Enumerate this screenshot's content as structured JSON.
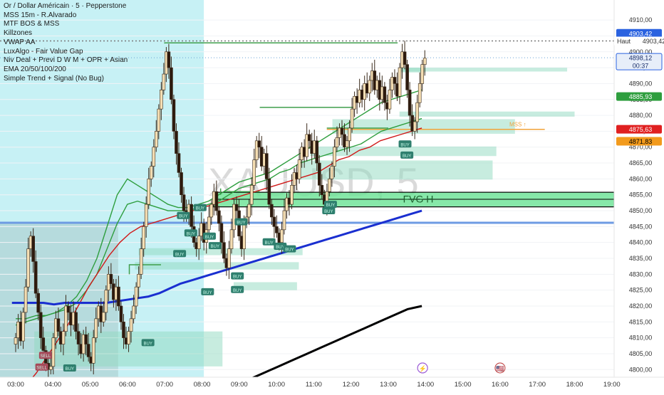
{
  "legend": {
    "symbol_line": "Or / Dollar Américain · 5 · Pepperstone",
    "indicators": [
      "MSS 15m - R.Alvarado",
      "MTF BOS & MSS",
      "Killzones",
      "VWAP AA",
      "LuxAlgo - Fair Value Gap",
      "Niv Deal + Previ D W M + OPR + Asian",
      "EMA 20/50/100/200",
      "Simple Trend + Signal (No Bug)"
    ]
  },
  "watermark": "XAUUSD, 5",
  "colors": {
    "bull_candle": "#f5deb3",
    "bear_candle": "#2d1a0e",
    "wick": "#3a2a1a",
    "session_fill": "#b4ecf2",
    "asian_fill": "#a8c8c8",
    "ema_green": "#2e9e3e",
    "ema_red": "#d01818",
    "ema_blue": "#1a2fd0",
    "ema_black": "#000000",
    "fvg_fill": "#8fd9bf",
    "level_blue": "#6e9be3",
    "signal_badge": "#2f7f6e"
  },
  "chart_data": {
    "type": "candlestick",
    "title": "Or / Dollar Américain · 5 · Pepperstone",
    "symbol": "XAUUSD",
    "timeframe": "5",
    "x_tick_labels": [
      "03:00",
      "04:00",
      "05:00",
      "06:00",
      "07:00",
      "08:00",
      "09:00",
      "10:00",
      "11:00",
      "12:00",
      "13:00",
      "14:00",
      "15:00",
      "16:00",
      "17:00",
      "18:00",
      "19:00"
    ],
    "y_tick_labels": [
      "4910,00",
      "4905,00",
      "4900,00",
      "4895,00",
      "4890,00",
      "4885,00",
      "4880,00",
      "4875,00",
      "4870,00",
      "4865,00",
      "4860,00",
      "4855,00",
      "4850,00",
      "4845,00",
      "4840,00",
      "4835,00",
      "4830,00",
      "4825,00",
      "4820,00",
      "4815,00",
      "4810,00",
      "4805,00",
      "4800,00"
    ],
    "ylim": [
      4798,
      4916
    ],
    "xlim": [
      "02:58",
      "19:25"
    ],
    "closes": [
      4810,
      4815,
      4809,
      4818,
      4826,
      4838,
      4842,
      4834,
      4824,
      4818,
      4810,
      4806,
      4802,
      4800,
      4801,
      4810,
      4816,
      4812,
      4808,
      4812,
      4820,
      4818,
      4814,
      4818,
      4812,
      4808,
      4805,
      4811,
      4808,
      4804,
      4802,
      4810,
      4816,
      4820,
      4815,
      4818,
      4825,
      4830,
      4827,
      4822,
      4826,
      4820,
      4815,
      4810,
      4808,
      4812,
      4816,
      4820,
      4826,
      4830,
      4838,
      4845,
      4852,
      4860,
      4864,
      4870,
      4875,
      4882,
      4888,
      4893,
      4900,
      4895,
      4885,
      4875,
      4868,
      4862,
      4855,
      4850,
      4848,
      4852,
      4845,
      4840,
      4838,
      4842,
      4846,
      4840,
      4844,
      4848,
      4852,
      4856,
      4850,
      4846,
      4840,
      4835,
      4832,
      4838,
      4844,
      4852,
      4850,
      4842,
      4838,
      4846,
      4848,
      4852,
      4858,
      4866,
      4872,
      4870,
      4864,
      4868,
      4860,
      4852,
      4848,
      4845,
      4843,
      4840,
      4844,
      4850,
      4854,
      4852,
      4858,
      4862,
      4860,
      4866,
      4870,
      4867,
      4874,
      4872,
      4868,
      4872,
      4865,
      4858,
      4855,
      4852,
      4856,
      4860,
      4864,
      4870,
      4873,
      4876,
      4874,
      4870,
      4872,
      4876,
      4882,
      4886,
      4884,
      4888,
      4885,
      4890,
      4887,
      4891,
      4894,
      4888,
      4891,
      4885,
      4889,
      4884,
      4882,
      4888,
      4892,
      4890,
      4886,
      4895,
      4900,
      4896,
      4888,
      4880,
      4875,
      4878,
      4884,
      4890,
      4896,
      4898
    ],
    "last_price": "4898,12",
    "countdown": "00:37",
    "price_tags": [
      {
        "value": "4910,00",
        "kind": "tick"
      },
      {
        "value": "4903,42",
        "kind": "blue"
      },
      {
        "value": "4903,42",
        "kind": "plain",
        "label": "Haut"
      },
      {
        "value": "4898,12",
        "kind": "last"
      },
      {
        "value": "4885,93",
        "kind": "green"
      },
      {
        "value": "4875,63",
        "kind": "red"
      },
      {
        "value": "4871,83",
        "kind": "orange"
      }
    ],
    "levels": [
      {
        "name": "haut",
        "y": 4903.42,
        "style": "dotted"
      },
      {
        "name": "last",
        "y": 4898.12,
        "style": "dotted-blue"
      },
      {
        "name": "blue-level",
        "y": 4846.2,
        "style": "solid-blue"
      },
      {
        "name": "mss",
        "y": 4875.6,
        "label": "MSS ↑",
        "style": "orange"
      }
    ],
    "fvg_zone": {
      "label": "FVG H",
      "top": 4855.8,
      "bottom": 4851.2
    },
    "ema_series": [
      {
        "color": "#2e9e3e",
        "values": [
          4814,
          4815,
          4816,
          4817,
          4818,
          4820,
          4823,
          4828,
          4835,
          4845,
          4855,
          4860,
          4858,
          4856,
          4854,
          4852,
          4851,
          4851,
          4852,
          4853,
          4855,
          4857,
          4859,
          4860,
          4861,
          4862,
          4864,
          4866,
          4868,
          4870,
          4872,
          4874,
          4876,
          4878,
          4880,
          4882,
          4884,
          4885,
          4886,
          4887,
          4888
        ]
      },
      {
        "color": "#2e9e3e",
        "values": [
          4816,
          4816,
          4817,
          4817,
          4818,
          4819,
          4821,
          4825,
          4830,
          4838,
          4846,
          4852,
          4853,
          4852,
          4851,
          4850,
          4850,
          4850,
          4851,
          4852,
          4853,
          4855,
          4857,
          4858,
          4859,
          4860,
          4862,
          4863,
          4865,
          4866,
          4867,
          4868,
          4869,
          4870,
          4871,
          4873,
          4875,
          4876,
          4877,
          4878,
          4879
        ]
      },
      {
        "color": "#d01818",
        "values": [
          4792,
          4795,
          4799,
          4804,
          4809,
          4814,
          4820,
          4826,
          4831,
          4836,
          4840,
          4843,
          4845,
          4846,
          4847,
          4848,
          4849,
          4850,
          4851,
          4852,
          4853,
          4854,
          4855,
          4856,
          4857,
          4858,
          4859,
          4860,
          4861,
          4862,
          4864,
          4866,
          4867,
          4869,
          4870,
          4872,
          4873,
          4874,
          4875,
          4876
        ]
      },
      {
        "color": "#1a2fd0",
        "values": [
          4821,
          4821,
          4821,
          4821,
          4820.5,
          4821,
          4821,
          4821,
          4821,
          4821,
          4821.5,
          4822,
          4822.5,
          4823,
          4824,
          4825.5,
          4827,
          4828,
          4829,
          4830,
          4831,
          4832,
          4833,
          4834,
          4835,
          4836,
          4837,
          4838,
          4839,
          4840,
          4841,
          4842,
          4843,
          4844,
          4845,
          4846,
          4847,
          4848,
          4849,
          4850
        ]
      },
      {
        "color": "#000000",
        "values": [
          4795,
          4797,
          4799,
          4801,
          4803,
          4805,
          4807,
          4809,
          4811,
          4813,
          4815,
          4817,
          4819,
          4820
        ]
      }
    ],
    "signals": [
      {
        "label": "BUY",
        "count": 14
      },
      {
        "label": "SELL",
        "count": 3
      }
    ],
    "session_labels": [
      "⚡",
      "🇺🇸"
    ]
  }
}
